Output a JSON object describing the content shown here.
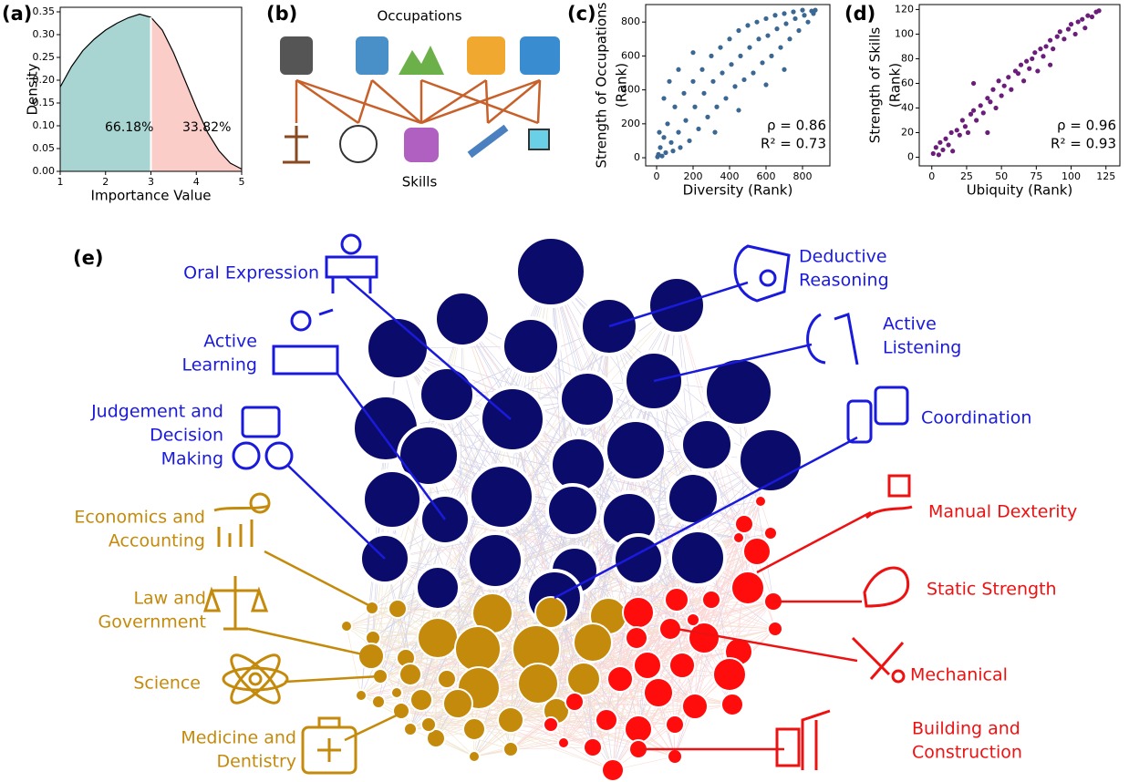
{
  "figure": {
    "panel_labels": [
      "(a)",
      "(b)",
      "(c)",
      "(d)",
      "(e)"
    ]
  },
  "chart_data": [
    {
      "type": "area",
      "xlabel": "Importance Value",
      "ylabel": [
        "Density"
      ],
      "xlim": [
        1,
        5
      ],
      "ylim": [
        0,
        0.36
      ],
      "xticks": [
        1,
        2,
        3,
        4,
        5
      ],
      "yticks": [
        {
          "value": 0,
          "label": "0.00"
        },
        {
          "value": 0.05,
          "label": "0.05"
        },
        {
          "value": 0.1,
          "label": "0.10"
        },
        {
          "value": 0.15,
          "label": "0.15"
        },
        {
          "value": 0.2,
          "label": "0.20"
        },
        {
          "value": 0.25,
          "label": "0.25"
        },
        {
          "value": 0.3,
          "label": "0.30"
        },
        {
          "value": 0.35,
          "label": "0.35"
        }
      ],
      "series": [
        {
          "color": "#a8d5d1",
          "x": [
            1,
            1.25,
            1.5,
            1.75,
            2,
            2.25,
            2.5,
            2.75,
            3
          ],
          "values": [
            0.185,
            0.23,
            0.265,
            0.29,
            0.31,
            0.325,
            0.337,
            0.345,
            0.338
          ]
        },
        {
          "color": "#fbcdc9",
          "x": [
            3,
            3.25,
            3.5,
            3.75,
            4,
            4.25,
            4.5,
            4.75,
            5
          ],
          "values": [
            0.338,
            0.31,
            0.26,
            0.2,
            0.14,
            0.085,
            0.045,
            0.018,
            0.005
          ]
        }
      ],
      "annotations": [
        "66.18%",
        "33.82%"
      ]
    },
    {
      "type": "scatter",
      "xlabel": "Diversity (Rank)",
      "ylabel": [
        "Strength of Occupations",
        "(Rank)"
      ],
      "xlim": [
        -60,
        950
      ],
      "ylim": [
        -48,
        903
      ],
      "xticks": [
        0,
        200,
        400,
        600,
        800
      ],
      "yticks": [
        0,
        200,
        400,
        600,
        800
      ],
      "color": "#3b6793",
      "x": [
        10,
        20,
        30,
        40,
        50,
        60,
        80,
        90,
        100,
        120,
        130,
        150,
        160,
        180,
        200,
        210,
        230,
        250,
        260,
        280,
        300,
        310,
        330,
        350,
        360,
        380,
        400,
        410,
        430,
        450,
        460,
        480,
        500,
        510,
        530,
        550,
        560,
        580,
        600,
        610,
        630,
        650,
        660,
        680,
        700,
        710,
        730,
        750,
        760,
        780,
        800,
        810,
        830,
        850,
        860,
        870,
        40,
        70,
        120,
        200,
        320,
        450,
        600,
        700,
        5,
        15
      ],
      "values": [
        20,
        60,
        10,
        120,
        30,
        200,
        90,
        40,
        300,
        150,
        60,
        380,
        220,
        100,
        450,
        300,
        170,
        520,
        380,
        240,
        600,
        450,
        300,
        650,
        500,
        350,
        700,
        550,
        420,
        750,
        600,
        460,
        780,
        650,
        500,
        800,
        700,
        560,
        820,
        720,
        600,
        840,
        760,
        650,
        850,
        790,
        700,
        860,
        820,
        750,
        870,
        840,
        800,
        865,
        850,
        870,
        350,
        450,
        520,
        620,
        150,
        280,
        430,
        520,
        5,
        150
      ],
      "annotations": [
        "ρ = 0.86",
        "R² = 0.73"
      ]
    },
    {
      "type": "scatter",
      "xlabel": "Ubiquity (Rank)",
      "ylabel": [
        "Strength of Skills",
        "(Rank)"
      ],
      "xlim": [
        -9,
        135
      ],
      "ylim": [
        -7,
        124
      ],
      "xticks": [
        0,
        25,
        50,
        75,
        100,
        125
      ],
      "yticks": [
        0,
        20,
        40,
        60,
        80,
        100,
        120
      ],
      "color": "#6b1d7a",
      "x": [
        1,
        3,
        5,
        6,
        8,
        10,
        12,
        14,
        15,
        18,
        20,
        22,
        24,
        26,
        28,
        30,
        32,
        35,
        37,
        40,
        42,
        44,
        46,
        48,
        50,
        52,
        55,
        57,
        60,
        62,
        64,
        66,
        68,
        70,
        72,
        74,
        76,
        78,
        80,
        82,
        85,
        87,
        90,
        92,
        95,
        98,
        100,
        103,
        105,
        108,
        110,
        112,
        115,
        118,
        120,
        85,
        30,
        40
      ],
      "values": [
        3,
        8,
        2,
        12,
        6,
        15,
        10,
        20,
        5,
        22,
        18,
        30,
        25,
        20,
        35,
        38,
        30,
        42,
        36,
        48,
        45,
        55,
        40,
        62,
        50,
        58,
        65,
        55,
        70,
        68,
        75,
        62,
        78,
        72,
        80,
        85,
        70,
        88,
        82,
        90,
        95,
        88,
        98,
        102,
        96,
        104,
        108,
        100,
        110,
        112,
        105,
        115,
        114,
        118,
        119,
        75,
        60,
        20
      ],
      "annotations": [
        "ρ = 0.96",
        "R² = 0.93"
      ]
    }
  ],
  "diagram_b": {
    "top_label": "Occupations",
    "bottom_label": "Skills",
    "line_color": "#c8602a"
  },
  "network": {
    "groups": [
      {
        "color": "#1a1adc",
        "node_color": "#0b0b6b",
        "labels": [
          [
            "Oral Expression"
          ],
          [
            "Active",
            "Learning"
          ],
          [
            "Judgement and",
            "Decision",
            "Making"
          ],
          [
            "Deductive",
            "Reasoning"
          ],
          [
            "Active",
            "Listening"
          ],
          [
            "Coordination"
          ]
        ]
      },
      {
        "color": "#c48a0c",
        "node_color": "#c48a0c",
        "labels": [
          [
            "Economics and",
            "Accounting"
          ],
          [
            "Law and",
            "Government"
          ],
          [
            "Science"
          ],
          [
            "Medicine and",
            "Dentistry"
          ]
        ]
      },
      {
        "color": "#ee1111",
        "node_color": "#ff0d0d",
        "labels": [
          [
            "Manual Dexterity"
          ],
          [
            "Static Strength"
          ],
          [
            "Mechanical"
          ],
          [
            "Building and",
            "Construction"
          ]
        ]
      }
    ]
  }
}
